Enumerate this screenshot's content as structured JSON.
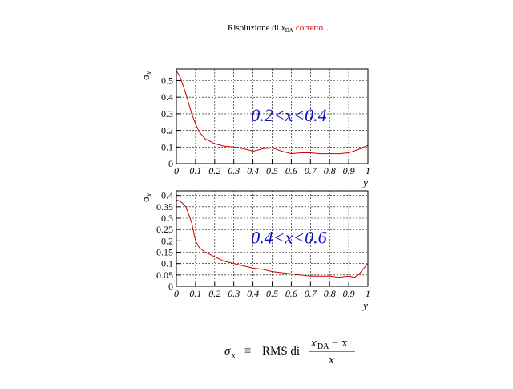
{
  "header": {
    "prefix": "Risoluzione di",
    "variable": "x",
    "subscript": "DA",
    "highlight": "corretto",
    "suffix": "."
  },
  "chart_data": [
    {
      "type": "line",
      "annotation": "0.2<x<0.4",
      "ylabel": {
        "symbol": "σ",
        "subscript": "x"
      },
      "xlabel": "y",
      "x": [
        0,
        0.02,
        0.05,
        0.08,
        0.1,
        0.12,
        0.15,
        0.2,
        0.25,
        0.3,
        0.35,
        0.4,
        0.42,
        0.45,
        0.5,
        0.55,
        0.6,
        0.65,
        0.7,
        0.75,
        0.8,
        0.85,
        0.9,
        0.95,
        1.0
      ],
      "series": [
        {
          "color": "#d00000",
          "values": [
            0.56,
            0.52,
            0.42,
            0.3,
            0.24,
            0.19,
            0.15,
            0.12,
            0.105,
            0.1,
            0.09,
            0.075,
            0.08,
            0.09,
            0.095,
            0.075,
            0.06,
            0.065,
            0.065,
            0.06,
            0.06,
            0.06,
            0.065,
            0.085,
            0.11
          ]
        }
      ],
      "xlim": [
        0,
        1
      ],
      "xticks": [
        0,
        0.1,
        0.2,
        0.3,
        0.4,
        0.5,
        0.6,
        0.7,
        0.8,
        0.9,
        1
      ],
      "ylim": [
        0,
        0.57
      ],
      "yticks": [
        0,
        0.1,
        0.2,
        0.3,
        0.4,
        0.5
      ],
      "grid": true
    },
    {
      "type": "line",
      "annotation": "0.4<x<0.6",
      "ylabel": {
        "symbol": "σ",
        "subscript": "x"
      },
      "xlabel": "y",
      "x": [
        0,
        0.02,
        0.05,
        0.08,
        0.1,
        0.12,
        0.15,
        0.2,
        0.25,
        0.3,
        0.35,
        0.4,
        0.45,
        0.5,
        0.55,
        0.6,
        0.65,
        0.7,
        0.75,
        0.8,
        0.85,
        0.9,
        0.93,
        0.95,
        0.98,
        1.0
      ],
      "series": [
        {
          "color": "#d00000",
          "values": [
            0.38,
            0.375,
            0.35,
            0.28,
            0.2,
            0.17,
            0.15,
            0.13,
            0.11,
            0.1,
            0.09,
            0.08,
            0.075,
            0.065,
            0.06,
            0.055,
            0.05,
            0.045,
            0.045,
            0.045,
            0.04,
            0.045,
            0.04,
            0.05,
            0.08,
            0.1
          ]
        }
      ],
      "xlim": [
        0,
        1
      ],
      "xticks": [
        0,
        0.1,
        0.2,
        0.3,
        0.4,
        0.5,
        0.6,
        0.7,
        0.8,
        0.9,
        1
      ],
      "ylim": [
        0,
        0.42
      ],
      "yticks": [
        0,
        0.05,
        0.1,
        0.15,
        0.2,
        0.25,
        0.3,
        0.35,
        0.4
      ],
      "grid": true
    }
  ],
  "footer": {
    "symbol": "σ",
    "subscript": "x",
    "equiv": "≡",
    "text": "RMS di",
    "num_var": "x",
    "num_sub": "DA",
    "num_rest": "− x",
    "den": "x"
  }
}
